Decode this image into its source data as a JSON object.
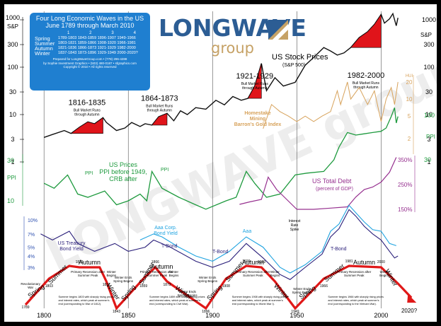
{
  "title_lines": [
    "Four Long Economic Waves in the US",
    "June 1789 through March 2010"
  ],
  "phase_table": {
    "columns": [
      "1",
      "2",
      "3",
      "4"
    ],
    "rows": [
      {
        "season": "Spring",
        "ranges": "1789-1803 1843-1859 1896-1907 1949-1966"
      },
      {
        "season": "Summer",
        "ranges": "1803-1821 1859-1866 1908-1920 1966-1981"
      },
      {
        "season": "Autumn",
        "ranges": "1821-1836 1866-1873 1921-1929 1982-2000"
      },
      {
        "season": "Winter",
        "ranges": "1837-1843 1873-1896 1929-1949 2000-2020?"
      }
    ],
    "footer": [
      "Prepared for LongWaveGroup.com • (778) 296-4288",
      "by Sophie Investment Graphics • (503) 480-0187 • sfgraphics.com",
      "Copyright © 2010 • All rights reserved"
    ]
  },
  "logo": {
    "word1": "LONGWAVE",
    "word2": "group",
    "watermark": "LONGWAVE group"
  },
  "colors": {
    "stock": "#111111",
    "ppi": "#1e9a3e",
    "gold": "#d7a25b",
    "debt": "#96308f",
    "yield_light": "#1ea3e0",
    "yield_mid": "#2c4fb0",
    "yield_dark": "#2a1f7a",
    "wave": "#e01818",
    "bull": "#e0141a",
    "infobox": "#1f7fd0"
  },
  "chart_data": {
    "type": "line",
    "x_range": [
      1789,
      2020
    ],
    "x_ticks": [
      "1800",
      "1850",
      "1900",
      "1950",
      "2000"
    ],
    "left_axis_sp": {
      "label": "S&P",
      "ticks": [
        "1000",
        "300",
        "100",
        "30",
        "10",
        "3",
        "1"
      ]
    },
    "right_axis_sp": {
      "label": "S&P",
      "ticks": [
        "1000",
        "300",
        "100",
        "30",
        "10",
        "3",
        "1"
      ]
    },
    "left_axis_ppi": {
      "label": "PPI",
      "ticks": [
        "30",
        "10"
      ]
    },
    "right_axis_ppi": {
      "label": "PPI",
      "ticks": [
        "100",
        "30"
      ]
    },
    "right_axis_gold": {
      "label": "HUI",
      "ticks": [
        "20",
        "10",
        "5",
        "2"
      ]
    },
    "right_axis_debt": {
      "ticks": [
        "350%",
        "250%",
        "150%"
      ]
    },
    "left_axis_yield": {
      "ticks": [
        "10%",
        "7%",
        "5%",
        "4%",
        "3%"
      ]
    },
    "series_labels": {
      "stock": [
        "US Stock Prices",
        "(S&P 500)"
      ],
      "ppi": [
        "US Prices",
        "PPI before 1949,",
        "CRB after"
      ],
      "gold": [
        "Homestake",
        "Mining",
        "Barron's Gold Index"
      ],
      "debt": [
        "US Total Debt",
        "(percent of GDP)"
      ],
      "yield_treasury": [
        "US Treasury",
        "Bond Yield"
      ],
      "yield_corp": [
        "Aaa Corp.",
        "Bond Yield"
      ],
      "ppi_inline": [
        "PPI",
        "PPI"
      ],
      "aaa_inline": "Aaa",
      "tbond_inline": [
        "T-Bond",
        "T-Bond",
        "T-Bond"
      ],
      "interest_spike": [
        "Interest",
        "Rate",
        "Spike"
      ]
    },
    "bull_markets": [
      {
        "years": "1816-1835",
        "note": [
          "Bull Market Runs",
          "through Autumn"
        ]
      },
      {
        "years": "1864-1873",
        "note": [
          "Bull Market Runs",
          "through Autumn"
        ]
      },
      {
        "years": "1921-1929",
        "note": [
          "Bull Market Runs",
          "through Autumn"
        ]
      },
      {
        "years": "1982-2000",
        "note": [
          "Bull Market Runs",
          "through Autumn"
        ]
      }
    ],
    "stock_series": [
      [
        1800,
        3.3
      ],
      [
        1805,
        3.8
      ],
      [
        1812,
        4.6
      ],
      [
        1816,
        4.0
      ],
      [
        1821,
        5.4
      ],
      [
        1826,
        7.0
      ],
      [
        1830,
        6.4
      ],
      [
        1835,
        8.6
      ],
      [
        1837,
        6.8
      ],
      [
        1843,
        4.6
      ],
      [
        1848,
        5.2
      ],
      [
        1852,
        6.8
      ],
      [
        1857,
        5.6
      ],
      [
        1860,
        6.4
      ],
      [
        1864,
        6.0
      ],
      [
        1868,
        9.0
      ],
      [
        1873,
        10.6
      ],
      [
        1877,
        7.4
      ],
      [
        1881,
        12
      ],
      [
        1885,
        10
      ],
      [
        1890,
        14
      ],
      [
        1896,
        13
      ],
      [
        1902,
        20
      ],
      [
        1907,
        16
      ],
      [
        1912,
        24
      ],
      [
        1917,
        20
      ],
      [
        1921,
        22
      ],
      [
        1925,
        40
      ],
      [
        1929,
        120
      ],
      [
        1932,
        32
      ],
      [
        1937,
        60
      ],
      [
        1942,
        40
      ],
      [
        1949,
        48
      ],
      [
        1955,
        110
      ],
      [
        1960,
        160
      ],
      [
        1966,
        260
      ],
      [
        1970,
        220
      ],
      [
        1974,
        180
      ],
      [
        1978,
        200
      ],
      [
        1982,
        260
      ],
      [
        1987,
        420
      ],
      [
        1992,
        560
      ],
      [
        1996,
        800
      ],
      [
        2000,
        1300
      ],
      [
        2002,
        850
      ],
      [
        2005,
        1050
      ],
      [
        2007,
        1350
      ],
      [
        2009,
        750
      ],
      [
        2010,
        1100
      ]
    ],
    "ppi_series": [
      [
        1800,
        16
      ],
      [
        1806,
        14
      ],
      [
        1814,
        20
      ],
      [
        1820,
        12
      ],
      [
        1826,
        11
      ],
      [
        1836,
        13
      ],
      [
        1843,
        9
      ],
      [
        1850,
        10
      ],
      [
        1857,
        12
      ],
      [
        1861,
        10
      ],
      [
        1864,
        22
      ],
      [
        1870,
        14
      ],
      [
        1880,
        11
      ],
      [
        1890,
        9
      ],
      [
        1896,
        8
      ],
      [
        1908,
        10
      ],
      [
        1914,
        11
      ],
      [
        1920,
        22
      ],
      [
        1925,
        16
      ],
      [
        1932,
        11
      ],
      [
        1940,
        12
      ],
      [
        1949,
        20
      ],
      [
        1956,
        21
      ],
      [
        1966,
        22
      ],
      [
        1972,
        30
      ],
      [
        1975,
        42
      ],
      [
        1980,
        62
      ],
      [
        1985,
        58
      ],
      [
        1990,
        60
      ],
      [
        1995,
        62
      ],
      [
        2000,
        64
      ],
      [
        2003,
        70
      ],
      [
        2006,
        95
      ],
      [
        2008,
        120
      ],
      [
        2009,
        80
      ],
      [
        2010,
        95
      ]
    ],
    "gold_series": [
      [
        1930,
        3
      ],
      [
        1935,
        8
      ],
      [
        1940,
        6
      ],
      [
        1945,
        5
      ],
      [
        1950,
        4
      ],
      [
        1955,
        5
      ],
      [
        1960,
        4
      ],
      [
        1965,
        5
      ],
      [
        1970,
        6
      ],
      [
        1974,
        14
      ],
      [
        1976,
        8
      ],
      [
        1980,
        20
      ],
      [
        1982,
        10
      ],
      [
        1987,
        16
      ],
      [
        1992,
        8
      ],
      [
        1996,
        14
      ],
      [
        2000,
        4
      ],
      [
        2003,
        10
      ],
      [
        2006,
        16
      ],
      [
        2008,
        8
      ],
      [
        2010,
        20
      ]
    ],
    "debt_series": [
      [
        1916,
        170
      ],
      [
        1922,
        180
      ],
      [
        1929,
        190
      ],
      [
        1933,
        280
      ],
      [
        1938,
        230
      ],
      [
        1944,
        190
      ],
      [
        1950,
        150
      ],
      [
        1960,
        150
      ],
      [
        1970,
        155
      ],
      [
        1980,
        160
      ],
      [
        1985,
        200
      ],
      [
        1990,
        230
      ],
      [
        1995,
        240
      ],
      [
        2000,
        260
      ],
      [
        2005,
        300
      ],
      [
        2009,
        360
      ]
    ],
    "yield_treasury_series": [
      [
        1798,
        7
      ],
      [
        1805,
        6
      ],
      [
        1815,
        7.5
      ],
      [
        1820,
        5.5
      ],
      [
        1830,
        4.5
      ],
      [
        1842,
        5.5
      ],
      [
        1850,
        4.5
      ],
      [
        1860,
        5
      ],
      [
        1865,
        6
      ],
      [
        1875,
        5
      ],
      [
        1890,
        3.5
      ],
      [
        1900,
        3
      ],
      [
        1910,
        3.5
      ],
      [
        1920,
        5.5
      ],
      [
        1930,
        3.8
      ],
      [
        1940,
        2.5
      ],
      [
        1946,
        2.2
      ],
      [
        1955,
        3
      ],
      [
        1965,
        4.2
      ],
      [
        1970,
        6.5
      ],
      [
        1975,
        8
      ],
      [
        1981,
        13
      ],
      [
        1985,
        11
      ],
      [
        1990,
        8.5
      ],
      [
        1995,
        7
      ],
      [
        2000,
        6
      ],
      [
        2005,
        4.5
      ],
      [
        2008,
        3.8
      ],
      [
        2010,
        4
      ]
    ],
    "yield_corp_series": [
      [
        1857,
        6
      ],
      [
        1865,
        7
      ],
      [
        1870,
        6.5
      ],
      [
        1880,
        5
      ],
      [
        1890,
        4
      ],
      [
        1900,
        3.5
      ],
      [
        1910,
        4.5
      ],
      [
        1920,
        6.5
      ],
      [
        1930,
        5
      ],
      [
        1940,
        3
      ],
      [
        1946,
        2.6
      ],
      [
        1955,
        3.2
      ],
      [
        1965,
        4.5
      ],
      [
        1970,
        7.5
      ],
      [
        1975,
        9
      ],
      [
        1981,
        14.5
      ],
      [
        1985,
        12
      ],
      [
        1990,
        9.5
      ],
      [
        1995,
        7.8
      ],
      [
        2000,
        7.5
      ],
      [
        2005,
        5.5
      ],
      [
        2009,
        5.2
      ]
    ],
    "wave_labels": {
      "seasons": [
        "Spring",
        "Summer",
        "Autumn",
        "Winter"
      ],
      "notes": [
        "Revolutionary War",
        "Primary Recession after Summer Peak",
        "Winter Begins",
        "Winter Ends Spring Begins",
        "Winter Ends Spring Begins",
        "Primary Recession after Summer Peak",
        "Winter Begins",
        "Winter Ends Spring Begins",
        "Primary Recession after Summer Peak",
        "Winter Begins",
        "Winter Ends Spring Begins",
        "Primary Recession after Summer Peak",
        "Winter Begins"
      ],
      "summer_notes": [
        "Summer begins 1803 with sharply rising prices and interest rates, which peak at summer's end (corresponding to War of 1812).",
        "Summer begins 1859 with sharply rising prices and interest rates, which peak at summer's end (corresponding to Civil War).",
        "Summer begins 1908 with sharply rising prices and interest rates, which peak at summer's end (corresponding to World War I).",
        "Summer begins 1966 with sharply rising prices and interest rates, which peak at summer's end (corresponding to the Vietnam War)."
      ],
      "years": [
        "1789",
        "1803",
        "1821",
        "1837",
        "1843",
        "1859",
        "1866",
        "1873",
        "1896",
        "1908",
        "1920",
        "1929",
        "1949",
        "1966",
        "1981",
        "2000"
      ],
      "future": "2020?"
    }
  }
}
